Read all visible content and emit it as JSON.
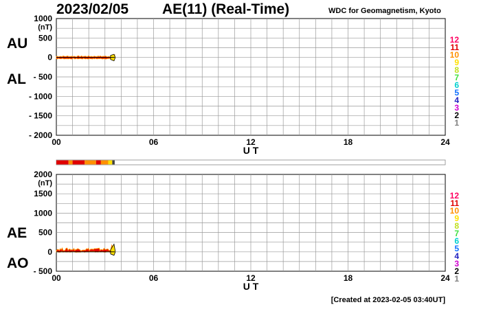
{
  "header": {
    "date": "2023/02/05",
    "title": "AE(11) (Real-Time)",
    "source": "WDC for Geomagnetism, Kyoto"
  },
  "footer": {
    "created": "[Created at 2023-02-05 03:40UT]"
  },
  "colors": {
    "grid": "#999999",
    "levels": [
      "#c8c8c8",
      "#808080",
      "#000000",
      "#d000d0",
      "#2020c0",
      "#1070ff",
      "#00d0d0",
      "#40e040",
      "#c0e020",
      "#ffe000",
      "#ff9000",
      "#e00000",
      "#ff0060"
    ]
  },
  "level_legend": [
    "12",
    "11",
    "10",
    "9",
    "8",
    "7",
    "6",
    "5",
    "4",
    "3",
    "2",
    "1"
  ],
  "chart_data": [
    {
      "type": "line",
      "name": "au-al",
      "series_labels": [
        "AU",
        "AL"
      ],
      "yunit": "(nT)",
      "ylim": [
        -2000,
        1000
      ],
      "yticks": [
        1000,
        500,
        0,
        -500,
        -1000,
        -1500,
        -2000
      ],
      "ytick_labels": [
        "1000",
        "500",
        "0",
        "- 500",
        "- 1000",
        "- 1500",
        "- 2000"
      ],
      "xlim": [
        0,
        24
      ],
      "xticks": [
        0,
        6,
        12,
        18,
        24
      ],
      "xtick_labels": [
        "00",
        "06",
        "12",
        "18",
        "24"
      ],
      "xlabel": "U T",
      "grid": true,
      "data_end_hour": 3.6,
      "au_range": [
        0,
        40
      ],
      "al_range": [
        -40,
        0
      ]
    },
    {
      "type": "line",
      "name": "ae-ao",
      "series_labels": [
        "AE",
        "AO"
      ],
      "yunit": "(nT)",
      "ylim": [
        -500,
        2000
      ],
      "yticks": [
        2000,
        1500,
        1000,
        500,
        0,
        -500
      ],
      "ytick_labels": [
        "2000",
        "1500",
        "1000",
        "500",
        "0",
        "- 500"
      ],
      "xlim": [
        0,
        24
      ],
      "xticks": [
        0,
        6,
        12,
        18,
        24
      ],
      "xtick_labels": [
        "00",
        "06",
        "12",
        "18",
        "24"
      ],
      "xlabel": "U T",
      "grid": true,
      "data_end_hour": 3.6,
      "ae_range": [
        0,
        100
      ],
      "ao_range": [
        -10,
        40
      ]
    }
  ],
  "activity_bar": {
    "segments": [
      {
        "start": 0.0,
        "end": 0.75,
        "color": "#e00000"
      },
      {
        "start": 0.75,
        "end": 1.0,
        "color": "#ff9000"
      },
      {
        "start": 1.0,
        "end": 1.75,
        "color": "#e00000"
      },
      {
        "start": 1.75,
        "end": 2.45,
        "color": "#ff9000"
      },
      {
        "start": 2.45,
        "end": 2.75,
        "color": "#e00000"
      },
      {
        "start": 2.75,
        "end": 3.2,
        "color": "#ff9000"
      },
      {
        "start": 3.2,
        "end": 3.45,
        "color": "#ffe000"
      },
      {
        "start": 3.45,
        "end": 3.6,
        "color": "#404040"
      }
    ]
  }
}
